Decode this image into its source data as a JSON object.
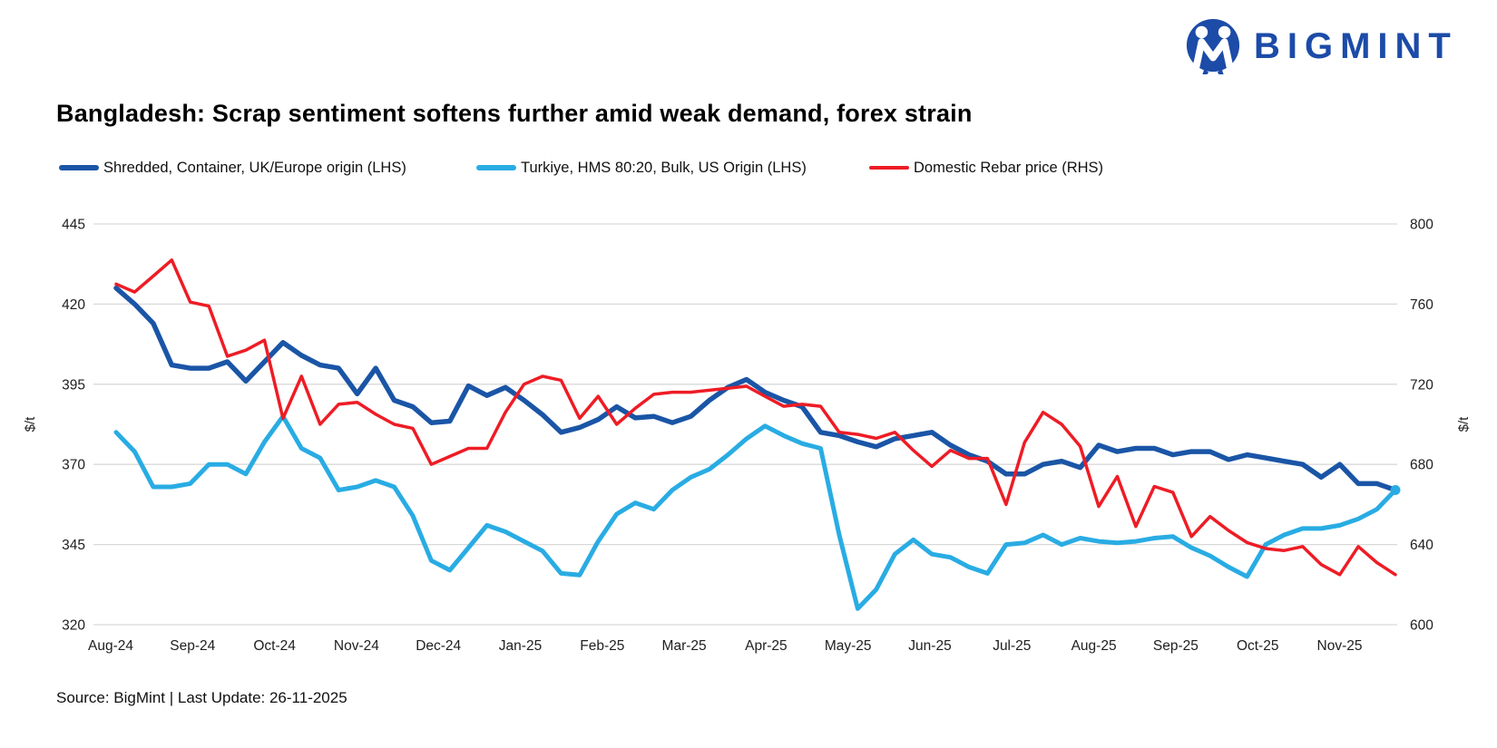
{
  "logo": {
    "brand": "BIGMINT",
    "color": "#1C4BA8",
    "icon": "bigmint-m-people-icon"
  },
  "header": {
    "title": "Bangladesh: Scrap sentiment softens further amid weak demand, forex strain"
  },
  "source_note": "Source: BigMint | Last Update: 26-11-2025",
  "chart_data": {
    "type": "line",
    "title": "Bangladesh: Scrap sentiment softens further amid weak demand, forex strain",
    "grid": "horizontal",
    "legend_position": "top",
    "x_labels": [
      "Aug-24",
      "Sep-24",
      "Oct-24",
      "Nov-24",
      "Dec-24",
      "Jan-25",
      "Feb-25",
      "Mar-25",
      "Apr-25",
      "May-25",
      "Jun-25",
      "Jul-25",
      "Aug-25",
      "Sep-25",
      "Oct-25",
      "Nov-25"
    ],
    "y_left": {
      "label": "$/t",
      "min": 320,
      "max": 445,
      "ticks": [
        445,
        420,
        395,
        370,
        345,
        320
      ]
    },
    "y_right": {
      "label": "$/t",
      "min": 600,
      "max": 800,
      "ticks": [
        800,
        760,
        720,
        680,
        640,
        600
      ]
    },
    "series": [
      {
        "id": "shredded-uk-europe",
        "name": "Shredded, Container, UK/Europe origin (LHS)",
        "axis": "left",
        "color": "#1A55A6",
        "end_marker": false,
        "values": [
          425,
          420,
          414,
          401,
          400,
          400,
          402,
          396,
          402,
          408,
          404,
          401,
          400,
          392,
          400,
          390,
          388,
          383,
          383.5,
          394.5,
          391.5,
          394,
          390,
          385.5,
          380,
          381.5,
          384,
          388,
          384.5,
          385,
          383,
          385,
          390,
          394,
          396.5,
          392.5,
          390,
          388,
          380,
          379,
          377,
          375.5,
          378,
          379,
          380,
          376,
          373,
          371,
          367,
          367,
          370,
          371,
          369,
          376,
          374,
          375,
          375,
          373,
          374,
          374,
          371.5,
          373,
          372,
          371,
          370,
          366,
          370,
          364,
          364,
          362
        ]
      },
      {
        "id": "turkiye-hms-8020",
        "name": "Turkiye, HMS 80:20, Bulk, US Origin (LHS)",
        "axis": "left",
        "color": "#29ACE3",
        "end_marker": true,
        "values": [
          380,
          374,
          363,
          363,
          364,
          370,
          370,
          367,
          377,
          385,
          375,
          372,
          362,
          363,
          365,
          363,
          354,
          340,
          337,
          344,
          351,
          349,
          346,
          343,
          336,
          335.5,
          346,
          354.5,
          358,
          356,
          362,
          366,
          368.5,
          373,
          378,
          382,
          379,
          376.5,
          375,
          348,
          325,
          331,
          342,
          346.5,
          342,
          341,
          338,
          336,
          345,
          345.5,
          348,
          345,
          347,
          346,
          345.5,
          346,
          347,
          347.5,
          344,
          341.5,
          338,
          335,
          345,
          348,
          350,
          350,
          351,
          353,
          356,
          362
        ]
      },
      {
        "id": "domestic-rebar",
        "name": "Domestic Rebar price (RHS)",
        "axis": "right",
        "color": "#EE1C25",
        "end_marker": false,
        "values": [
          770,
          766,
          774,
          782,
          761,
          759,
          734,
          737,
          742,
          703,
          724,
          700,
          710,
          711,
          705,
          700,
          698,
          680,
          684,
          688,
          688,
          706,
          720,
          724,
          722,
          703,
          714,
          700,
          708,
          715,
          716,
          716,
          717,
          718,
          719,
          714,
          709,
          710,
          709,
          696,
          695,
          693,
          696,
          687,
          679,
          687,
          683,
          683,
          660,
          691,
          706,
          700,
          689,
          659,
          674,
          649,
          669,
          666,
          644,
          654,
          647,
          641,
          638,
          637,
          639,
          630,
          625,
          639,
          631,
          625
        ]
      }
    ]
  }
}
